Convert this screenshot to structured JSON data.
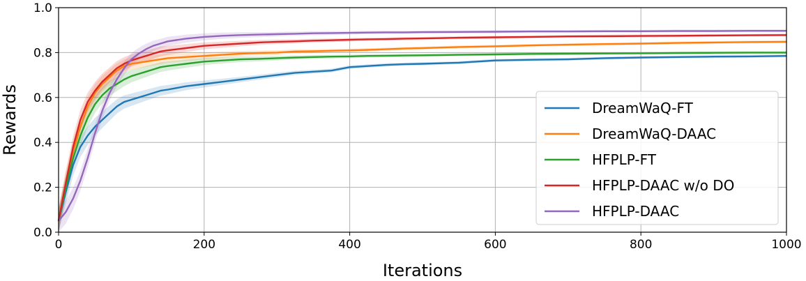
{
  "chart_data": {
    "type": "line",
    "xlabel": "Iterations",
    "ylabel": "Rewards",
    "xlim": [
      0,
      1000
    ],
    "ylim": [
      0,
      1.0
    ],
    "xticks": [
      0,
      200,
      400,
      600,
      800,
      1000
    ],
    "yticks": [
      0.0,
      0.2,
      0.4,
      0.6,
      0.8,
      1.0
    ],
    "xtick_labels": [
      "0",
      "200",
      "400",
      "600",
      "800",
      "1000"
    ],
    "ytick_labels": [
      "0.0",
      "0.2",
      "0.4",
      "0.6",
      "0.8",
      "1.0"
    ],
    "grid": true,
    "legend_position": "center-right",
    "series": [
      {
        "name": "DreamWaQ-FT",
        "color": "#1f77b4",
        "x": [
          0,
          10,
          20,
          30,
          40,
          50,
          60,
          70,
          80,
          90,
          100,
          110,
          120,
          130,
          140,
          150,
          175,
          200,
          225,
          250,
          275,
          300,
          325,
          350,
          375,
          400,
          425,
          450,
          475,
          500,
          550,
          600,
          650,
          700,
          750,
          800,
          850,
          900,
          950,
          1000
        ],
        "y": [
          0.05,
          0.18,
          0.3,
          0.38,
          0.43,
          0.47,
          0.5,
          0.53,
          0.56,
          0.58,
          0.59,
          0.6,
          0.61,
          0.62,
          0.63,
          0.635,
          0.65,
          0.66,
          0.67,
          0.68,
          0.69,
          0.7,
          0.71,
          0.715,
          0.72,
          0.735,
          0.74,
          0.745,
          0.748,
          0.75,
          0.755,
          0.765,
          0.768,
          0.77,
          0.775,
          0.778,
          0.78,
          0.782,
          0.783,
          0.785
        ]
      },
      {
        "name": "DreamWaQ-DAAC",
        "color": "#ff7f0e",
        "x": [
          0,
          10,
          20,
          30,
          40,
          50,
          60,
          70,
          80,
          90,
          100,
          110,
          120,
          130,
          140,
          150,
          175,
          200,
          225,
          250,
          275,
          300,
          325,
          350,
          375,
          400,
          425,
          450,
          475,
          500,
          550,
          600,
          650,
          700,
          750,
          800,
          850,
          900,
          950,
          1000
        ],
        "y": [
          0.05,
          0.22,
          0.36,
          0.47,
          0.56,
          0.62,
          0.66,
          0.69,
          0.72,
          0.74,
          0.75,
          0.755,
          0.76,
          0.765,
          0.77,
          0.775,
          0.78,
          0.785,
          0.79,
          0.795,
          0.798,
          0.8,
          0.805,
          0.806,
          0.808,
          0.81,
          0.812,
          0.815,
          0.818,
          0.82,
          0.825,
          0.828,
          0.832,
          0.835,
          0.838,
          0.84,
          0.843,
          0.845,
          0.847,
          0.848
        ]
      },
      {
        "name": "HFPLP-FT",
        "color": "#2ca02c",
        "x": [
          0,
          10,
          20,
          30,
          40,
          50,
          60,
          70,
          80,
          90,
          100,
          110,
          120,
          130,
          140,
          150,
          175,
          200,
          225,
          250,
          275,
          300,
          325,
          350,
          375,
          400,
          425,
          450,
          475,
          500,
          550,
          600,
          650,
          700,
          750,
          800,
          850,
          900,
          950,
          1000
        ],
        "y": [
          0.05,
          0.2,
          0.33,
          0.43,
          0.51,
          0.57,
          0.61,
          0.64,
          0.66,
          0.68,
          0.695,
          0.705,
          0.715,
          0.725,
          0.735,
          0.74,
          0.75,
          0.76,
          0.765,
          0.77,
          0.772,
          0.775,
          0.778,
          0.78,
          0.782,
          0.783,
          0.785,
          0.786,
          0.787,
          0.788,
          0.79,
          0.792,
          0.794,
          0.795,
          0.796,
          0.797,
          0.798,
          0.799,
          0.8,
          0.8
        ]
      },
      {
        "name": "HFPLP-DAAC w/o DO",
        "color": "#d62728",
        "x": [
          0,
          10,
          20,
          30,
          40,
          50,
          60,
          70,
          80,
          90,
          100,
          110,
          120,
          130,
          140,
          150,
          175,
          200,
          225,
          250,
          275,
          300,
          325,
          350,
          375,
          400,
          425,
          450,
          475,
          500,
          550,
          600,
          650,
          700,
          750,
          800,
          850,
          900,
          950,
          1000
        ],
        "y": [
          0.05,
          0.22,
          0.38,
          0.5,
          0.58,
          0.63,
          0.67,
          0.7,
          0.73,
          0.75,
          0.765,
          0.775,
          0.785,
          0.795,
          0.805,
          0.81,
          0.82,
          0.83,
          0.835,
          0.84,
          0.845,
          0.848,
          0.85,
          0.853,
          0.855,
          0.857,
          0.859,
          0.86,
          0.862,
          0.863,
          0.866,
          0.868,
          0.87,
          0.872,
          0.873,
          0.874,
          0.875,
          0.876,
          0.877,
          0.878
        ]
      },
      {
        "name": "HFPLP-DAAC",
        "color": "#9467bd",
        "x": [
          0,
          10,
          20,
          30,
          40,
          50,
          60,
          70,
          80,
          90,
          100,
          110,
          120,
          130,
          140,
          150,
          175,
          200,
          225,
          250,
          275,
          300,
          325,
          350,
          375,
          400,
          425,
          450,
          475,
          500,
          550,
          600,
          650,
          700,
          750,
          800,
          850,
          900,
          950,
          1000
        ],
        "y": [
          0.05,
          0.09,
          0.15,
          0.23,
          0.33,
          0.44,
          0.54,
          0.62,
          0.68,
          0.73,
          0.77,
          0.795,
          0.815,
          0.83,
          0.84,
          0.85,
          0.862,
          0.87,
          0.875,
          0.878,
          0.88,
          0.882,
          0.884,
          0.886,
          0.887,
          0.888,
          0.889,
          0.89,
          0.89,
          0.891,
          0.892,
          0.893,
          0.894,
          0.894,
          0.895,
          0.895,
          0.896,
          0.896,
          0.897,
          0.897
        ]
      }
    ]
  }
}
